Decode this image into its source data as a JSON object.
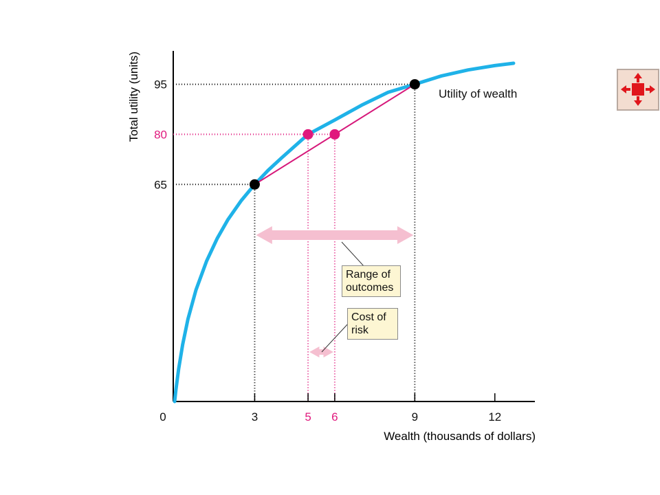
{
  "chart_data": {
    "type": "line",
    "x_label": "Wealth (thousands of dollars)",
    "y_label": "Total utility (units)",
    "xlim": [
      0,
      13.5
    ],
    "ylim": [
      0,
      105
    ],
    "xticks": [
      0,
      3,
      5,
      6,
      9,
      12
    ],
    "xtick_colors": [
      "#111111",
      "#111111",
      "#e0197d",
      "#e0197d",
      "#111111",
      "#111111"
    ],
    "yticks": [
      65,
      80,
      95
    ],
    "ytick_colors": [
      "#111111",
      "#e0197d",
      "#111111"
    ],
    "series": [
      {
        "name": "Utility of wealth",
        "color": "#1fb2e8",
        "x": [
          0,
          0.05,
          0.15,
          0.3,
          0.5,
          0.8,
          1.2,
          1.6,
          2,
          2.5,
          3,
          3.5,
          4,
          5,
          6,
          7,
          8,
          9,
          10,
          11,
          12,
          12.7
        ],
        "values": [
          0,
          3.6,
          9.7,
          17,
          24.7,
          33.4,
          42.1,
          48.9,
          54.5,
          60.2,
          65,
          69.2,
          72.9,
          80,
          84.3,
          88.7,
          92.6,
          95,
          97.5,
          99.3,
          100.6,
          101.3
        ]
      }
    ],
    "points": {
      "x": [
        3,
        9,
        5,
        6
      ],
      "y": [
        65,
        95,
        80,
        80
      ],
      "colors": [
        "#000000",
        "#000000",
        "#e0197d",
        "#e0197d"
      ]
    },
    "chord": {
      "color": "#d6187a",
      "x": [
        3,
        9
      ],
      "values": [
        65,
        95
      ]
    },
    "annotation_color": "#f5bfd0",
    "annotations": [
      {
        "text": "Range of outcomes",
        "x": [
          3,
          9
        ]
      },
      {
        "text": "Cost of risk",
        "x": [
          5,
          6
        ]
      }
    ]
  }
}
